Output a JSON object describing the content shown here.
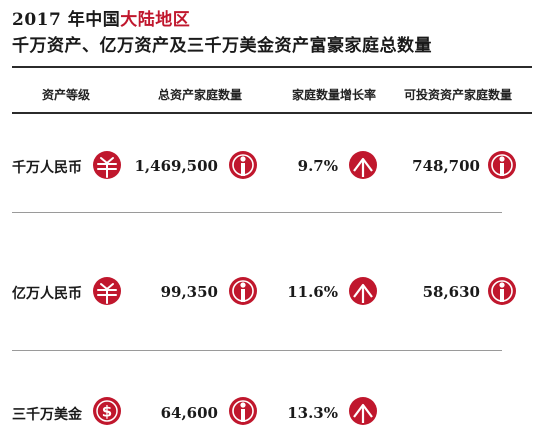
{
  "title": {
    "line1_prefix": "2017 年中国",
    "line1_highlight": "大陆地区",
    "line2": "千万资产、亿万资产及三千万美金资产富豪家庭总数量"
  },
  "headers": {
    "level": "资产等级",
    "total": "总资产家庭数量",
    "growth": "家庭数量增长率",
    "investable": "可投资资产家庭数量"
  },
  "rows": [
    {
      "label": "千万人民币",
      "total": "1,469,500",
      "growth": "9.7%",
      "investable": "748,700",
      "currency_icon": "yuan-grid-icon"
    },
    {
      "label": "亿万人民币",
      "total": "99,350",
      "growth": "11.6%",
      "investable": "58,630",
      "currency_icon": "yuan-grid-icon"
    },
    {
      "label": "三千万美金",
      "total": "64,600",
      "growth": "13.3%",
      "investable": "",
      "currency_icon": "dollar-icon"
    }
  ],
  "colors": {
    "accent": "#c0172d",
    "text": "#1a1a1a",
    "rule": "#2b2b2b"
  }
}
